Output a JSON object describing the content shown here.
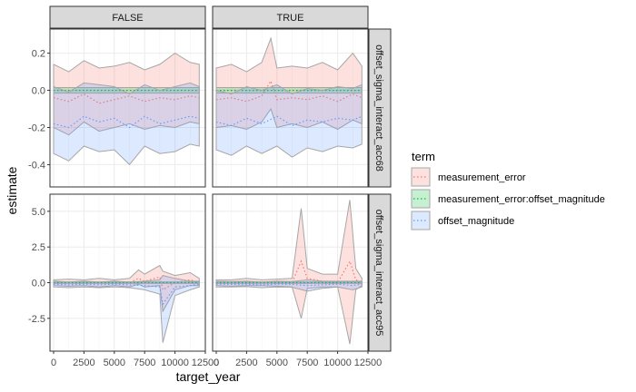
{
  "chart_data": {
    "type": "area",
    "xlabel": "target_year",
    "ylabel": "estimate",
    "legend": {
      "title": "term",
      "position": "right"
    },
    "grid": true,
    "col_facets": [
      "FALSE",
      "TRUE"
    ],
    "row_facets": [
      "offset_sigma_interact_acc68",
      "offset_sigma_interact_acc95"
    ],
    "xlim": [
      -300,
      12500
    ],
    "x_ticks": [
      0,
      2500,
      5000,
      7500,
      10000,
      12500
    ],
    "x_tick_labels": [
      "0",
      "2500",
      "5000",
      "7500",
      "10000",
      "12500"
    ],
    "rows": [
      {
        "ylim": [
          -0.52,
          0.33
        ],
        "y_ticks": [
          0.2,
          0.0,
          -0.2,
          -0.4
        ],
        "y_tick_labels": [
          "0.2",
          "0.0",
          "-0.2",
          "-0.4"
        ]
      },
      {
        "ylim": [
          -4.8,
          6.2
        ],
        "y_ticks": [
          5.0,
          2.5,
          0.0,
          -2.5
        ],
        "y_tick_labels": [
          "5.0",
          "2.5",
          "0.0",
          "-2.5"
        ]
      }
    ],
    "series": [
      {
        "name": "measurement_error",
        "color": "#F8766D"
      },
      {
        "name": "measurement_error:offset_magnitude",
        "color": "#00BA38"
      },
      {
        "name": "offset_magnitude",
        "color": "#619CFF"
      }
    ],
    "panels": [
      {
        "row": 0,
        "col": 0,
        "bands": [
          {
            "series": "measurement_error",
            "x": [
              0,
              1250,
              2500,
              3750,
              5000,
              6250,
              7500,
              8750,
              10000,
              11250,
              12000
            ],
            "mean": [
              -0.04,
              -0.06,
              -0.02,
              -0.07,
              -0.05,
              -0.03,
              -0.06,
              -0.04,
              -0.05,
              -0.03,
              -0.04
            ],
            "lower": [
              -0.2,
              -0.24,
              -0.17,
              -0.22,
              -0.2,
              -0.18,
              -0.21,
              -0.19,
              -0.2,
              -0.17,
              -0.18
            ],
            "upper": [
              0.14,
              0.1,
              0.16,
              0.12,
              0.13,
              0.15,
              0.11,
              0.14,
              0.2,
              0.15,
              0.14
            ]
          },
          {
            "series": "measurement_error:offset_magnitude",
            "x": [
              0,
              1250,
              2500,
              3750,
              5000,
              6250,
              7500,
              8750,
              10000,
              11250,
              12000
            ],
            "mean": [
              0.0,
              0.0,
              0.0,
              0.0,
              0.0,
              0.0,
              0.0,
              0.0,
              0.0,
              0.0,
              0.0
            ],
            "lower": [
              -0.015,
              -0.015,
              -0.015,
              -0.015,
              -0.015,
              -0.015,
              -0.015,
              -0.015,
              -0.015,
              -0.015,
              -0.015
            ],
            "upper": [
              0.015,
              0.015,
              0.015,
              0.015,
              0.015,
              0.015,
              0.015,
              0.015,
              0.015,
              0.015,
              0.015
            ]
          },
          {
            "series": "offset_magnitude",
            "x": [
              0,
              1250,
              2500,
              3750,
              5000,
              6250,
              7500,
              8750,
              10000,
              11250,
              12000
            ],
            "mean": [
              -0.18,
              -0.2,
              -0.14,
              -0.17,
              -0.15,
              -0.2,
              -0.14,
              -0.18,
              -0.16,
              -0.14,
              -0.15
            ],
            "lower": [
              -0.34,
              -0.38,
              -0.3,
              -0.33,
              -0.32,
              -0.4,
              -0.3,
              -0.34,
              -0.33,
              -0.29,
              -0.3
            ],
            "upper": [
              0.02,
              -0.01,
              0.04,
              0.03,
              0.02,
              -0.02,
              0.03,
              0.0,
              0.02,
              0.04,
              0.02
            ]
          }
        ]
      },
      {
        "row": 0,
        "col": 1,
        "bands": [
          {
            "series": "measurement_error",
            "x": [
              0,
              1250,
              2500,
              3750,
              4500,
              5000,
              6250,
              7500,
              8750,
              10000,
              11250,
              12000
            ],
            "mean": [
              -0.05,
              -0.04,
              -0.06,
              -0.03,
              0.05,
              -0.05,
              -0.04,
              -0.05,
              -0.03,
              -0.06,
              -0.02,
              -0.04
            ],
            "lower": [
              -0.2,
              -0.19,
              -0.21,
              -0.17,
              -0.1,
              -0.2,
              -0.18,
              -0.2,
              -0.17,
              -0.21,
              -0.16,
              -0.18
            ],
            "upper": [
              0.12,
              0.14,
              0.1,
              0.15,
              0.28,
              0.12,
              0.13,
              0.12,
              0.15,
              0.11,
              0.2,
              0.13
            ]
          },
          {
            "series": "measurement_error:offset_magnitude",
            "x": [
              0,
              1250,
              2500,
              3750,
              5000,
              6250,
              7500,
              8750,
              10000,
              11250,
              12000
            ],
            "mean": [
              0.0,
              0.0,
              0.0,
              0.0,
              0.0,
              0.0,
              0.0,
              0.0,
              0.0,
              0.0,
              0.0
            ],
            "lower": [
              -0.015,
              -0.015,
              -0.015,
              -0.015,
              -0.015,
              -0.015,
              -0.015,
              -0.015,
              -0.015,
              -0.015,
              -0.015
            ],
            "upper": [
              0.015,
              0.015,
              0.015,
              0.015,
              0.015,
              0.015,
              0.015,
              0.015,
              0.015,
              0.015,
              0.015
            ]
          },
          {
            "series": "offset_magnitude",
            "x": [
              0,
              1250,
              2500,
              3750,
              5000,
              6250,
              7500,
              8750,
              10000,
              11250,
              12000
            ],
            "mean": [
              -0.17,
              -0.19,
              -0.15,
              -0.18,
              -0.14,
              -0.19,
              -0.16,
              -0.17,
              -0.15,
              -0.16,
              -0.14
            ],
            "lower": [
              -0.32,
              -0.35,
              -0.3,
              -0.34,
              -0.3,
              -0.36,
              -0.31,
              -0.33,
              -0.3,
              -0.31,
              -0.29
            ],
            "upper": [
              0.0,
              -0.02,
              0.02,
              0.0,
              0.03,
              -0.02,
              0.01,
              0.0,
              0.02,
              0.01,
              0.03
            ]
          }
        ]
      },
      {
        "row": 1,
        "col": 0,
        "bands": [
          {
            "series": "measurement_error",
            "x": [
              0,
              1250,
              2500,
              3750,
              5000,
              6250,
              7000,
              7500,
              8750,
              9000,
              10000,
              11250,
              12000
            ],
            "mean": [
              0.0,
              0.0,
              0.0,
              0.0,
              0.0,
              0.0,
              0.3,
              0.1,
              0.4,
              -0.5,
              0.0,
              0.2,
              0.0
            ],
            "lower": [
              -0.2,
              -0.25,
              -0.2,
              -0.3,
              -0.2,
              -0.3,
              -0.1,
              -0.3,
              -0.2,
              -2.0,
              -0.5,
              -0.2,
              -0.2
            ],
            "upper": [
              0.2,
              0.25,
              0.2,
              0.3,
              0.2,
              0.3,
              0.9,
              0.6,
              1.2,
              0.8,
              0.5,
              0.7,
              0.3
            ]
          },
          {
            "series": "measurement_error:offset_magnitude",
            "x": [
              0,
              1250,
              2500,
              3750,
              5000,
              6250,
              7500,
              8750,
              10000,
              11250,
              12000
            ],
            "mean": [
              0.0,
              0.0,
              0.0,
              0.0,
              0.0,
              0.0,
              0.0,
              0.0,
              0.0,
              0.0,
              0.0
            ],
            "lower": [
              -0.05,
              -0.05,
              -0.05,
              -0.05,
              -0.05,
              -0.05,
              -0.05,
              -0.05,
              -0.05,
              -0.05,
              -0.05
            ],
            "upper": [
              0.05,
              0.05,
              0.05,
              0.05,
              0.05,
              0.05,
              0.05,
              0.05,
              0.05,
              0.05,
              0.05
            ]
          },
          {
            "series": "offset_magnitude",
            "x": [
              0,
              1250,
              2500,
              3750,
              5000,
              6250,
              7500,
              8750,
              9000,
              10000,
              11250,
              12000
            ],
            "mean": [
              -0.1,
              -0.15,
              -0.1,
              -0.15,
              -0.1,
              -0.15,
              -0.2,
              -0.3,
              -1.5,
              -0.3,
              -0.2,
              -0.1
            ],
            "lower": [
              -0.3,
              -0.35,
              -0.3,
              -0.35,
              -0.3,
              -0.35,
              -0.5,
              -0.8,
              -4.2,
              -0.9,
              -0.5,
              -0.3
            ],
            "upper": [
              0.1,
              0.05,
              0.1,
              0.05,
              0.1,
              0.05,
              0.1,
              0.2,
              0.5,
              0.3,
              0.1,
              0.1
            ]
          }
        ]
      },
      {
        "row": 1,
        "col": 1,
        "bands": [
          {
            "series": "measurement_error",
            "x": [
              0,
              1250,
              2500,
              3750,
              5000,
              6250,
              7000,
              7500,
              8750,
              10000,
              11000,
              11500,
              12000
            ],
            "mean": [
              0.0,
              0.0,
              0.0,
              0.0,
              0.0,
              0.0,
              1.5,
              0.3,
              0.1,
              0.0,
              1.5,
              0.2,
              0.0
            ],
            "lower": [
              -0.2,
              -0.25,
              -0.2,
              -0.2,
              -0.25,
              -0.3,
              -2.5,
              -0.4,
              -0.3,
              -0.3,
              -4.3,
              -0.5,
              -0.2
            ],
            "upper": [
              0.2,
              0.2,
              0.3,
              0.2,
              0.25,
              0.3,
              5.2,
              1.0,
              0.6,
              0.6,
              5.8,
              1.0,
              0.3
            ]
          },
          {
            "series": "measurement_error:offset_magnitude",
            "x": [
              0,
              1250,
              2500,
              3750,
              5000,
              6250,
              7500,
              8750,
              10000,
              11250,
              12000
            ],
            "mean": [
              0.0,
              0.0,
              0.0,
              0.0,
              0.0,
              0.0,
              0.0,
              0.0,
              0.0,
              0.0,
              0.0
            ],
            "lower": [
              -0.05,
              -0.05,
              -0.05,
              -0.05,
              -0.05,
              -0.05,
              -0.05,
              -0.05,
              -0.05,
              -0.05,
              -0.05
            ],
            "upper": [
              0.05,
              0.05,
              0.05,
              0.05,
              0.05,
              0.05,
              0.05,
              0.05,
              0.05,
              0.05,
              0.05
            ]
          },
          {
            "series": "offset_magnitude",
            "x": [
              0,
              1250,
              2500,
              3750,
              5000,
              6250,
              7500,
              8750,
              10000,
              11250,
              12000
            ],
            "mean": [
              -0.1,
              -0.12,
              -0.1,
              -0.15,
              -0.1,
              -0.12,
              -0.2,
              -0.15,
              -0.1,
              -0.2,
              -0.1
            ],
            "lower": [
              -0.3,
              -0.3,
              -0.28,
              -0.35,
              -0.3,
              -0.32,
              -0.6,
              -0.4,
              -0.3,
              -0.5,
              -0.3
            ],
            "upper": [
              0.1,
              0.08,
              0.1,
              0.05,
              0.1,
              0.08,
              0.2,
              0.1,
              0.1,
              0.1,
              0.1
            ]
          }
        ]
      }
    ]
  }
}
